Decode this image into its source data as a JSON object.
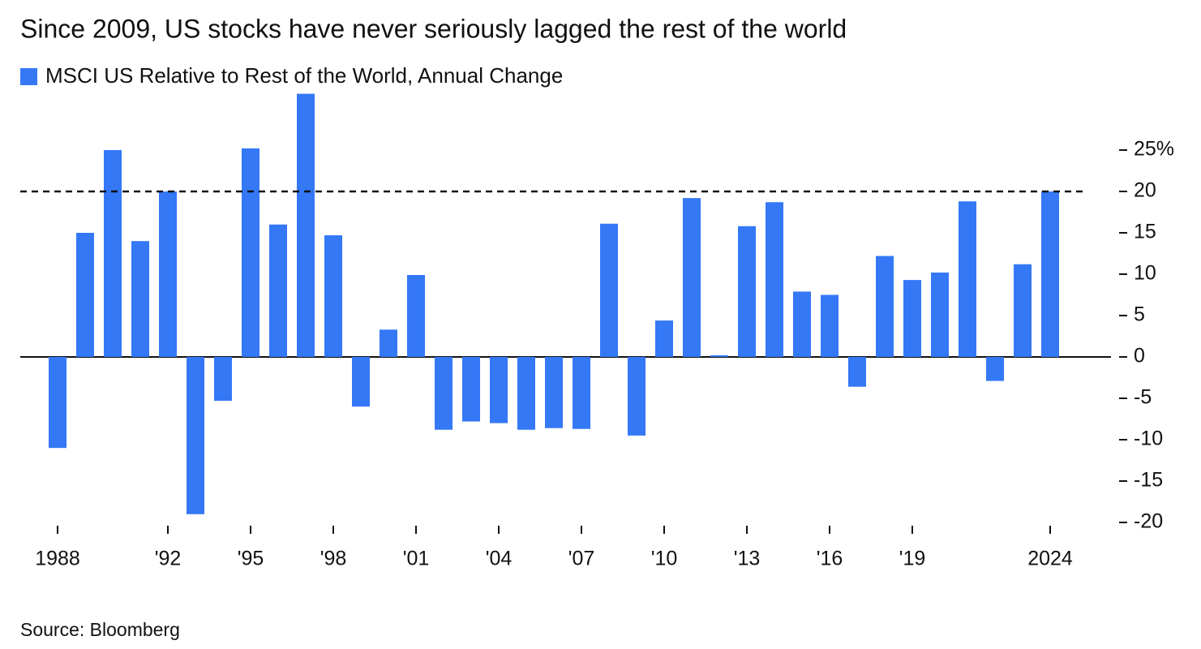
{
  "chart_data": {
    "type": "bar",
    "title": "Since 2009, US stocks have never seriously lagged the rest of the world",
    "legend_label": "MSCI US Relative to Rest of the World, Annual Change",
    "source": "Source: Bloomberg",
    "color": "#3478f6",
    "categories": [
      "1988",
      null,
      null,
      null,
      "'92",
      null,
      null,
      "'95",
      null,
      null,
      "'98",
      null,
      null,
      "'01",
      null,
      null,
      "'04",
      null,
      null,
      "'07",
      null,
      null,
      "'10",
      null,
      null,
      "'13",
      null,
      null,
      "'16",
      null,
      null,
      "'19",
      null,
      null,
      null,
      null,
      "2024"
    ],
    "values": [
      -11,
      15,
      25,
      14,
      20,
      -19,
      -5.3,
      25.2,
      16,
      31.8,
      14.7,
      -6,
      3.3,
      9.9,
      -8.8,
      -7.8,
      -8,
      -8.8,
      -8.6,
      -8.7,
      16.1,
      -9.5,
      4.4,
      19.2,
      0.2,
      15.8,
      18.7,
      7.9,
      7.5,
      -3.6,
      12.2,
      9.3,
      10.2,
      18.8,
      -2.9,
      11.2,
      20
    ],
    "ylim": [
      -20,
      31.8
    ],
    "yticks": [
      -20,
      -15,
      -10,
      -5,
      0,
      5,
      10,
      15,
      20,
      {
        "value": 25,
        "label": "25%"
      }
    ],
    "reference_line": 20
  }
}
